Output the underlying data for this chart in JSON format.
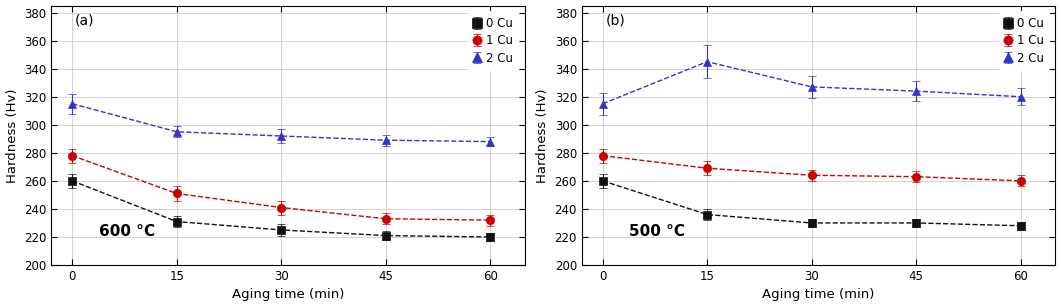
{
  "x": [
    0,
    15,
    30,
    45,
    60
  ],
  "panel_a": {
    "label": "(a)",
    "temp_label": "600 °C",
    "series": {
      "0Cu": {
        "y": [
          260,
          231,
          225,
          221,
          220
        ],
        "yerr": [
          5,
          4,
          4,
          3,
          3
        ],
        "color": "#111111",
        "marker": "s",
        "label": "0 Cu"
      },
      "1Cu": {
        "y": [
          278,
          251,
          241,
          233,
          232
        ],
        "yerr": [
          5,
          5,
          5,
          4,
          4
        ],
        "color": "#cc0000",
        "marker": "o",
        "label": "1 Cu"
      },
      "2Cu": {
        "y": [
          315,
          295,
          292,
          289,
          288
        ],
        "yerr": [
          7,
          4,
          5,
          4,
          3
        ],
        "color": "#3333cc",
        "marker": "^",
        "label": "2 Cu"
      }
    }
  },
  "panel_b": {
    "label": "(b)",
    "temp_label": "500 °C",
    "series": {
      "0Cu": {
        "y": [
          260,
          236,
          230,
          230,
          228
        ],
        "yerr": [
          5,
          4,
          3,
          3,
          3
        ],
        "color": "#111111",
        "marker": "s",
        "label": "0 Cu"
      },
      "1Cu": {
        "y": [
          278,
          269,
          264,
          263,
          260
        ],
        "yerr": [
          5,
          5,
          4,
          4,
          4
        ],
        "color": "#cc0000",
        "marker": "o",
        "label": "1 Cu"
      },
      "2Cu": {
        "y": [
          315,
          345,
          327,
          324,
          320
        ],
        "yerr": [
          8,
          12,
          8,
          7,
          6
        ],
        "color": "#3333cc",
        "marker": "^",
        "label": "2 Cu"
      }
    }
  },
  "ylim": [
    200,
    385
  ],
  "yticks": [
    200,
    220,
    240,
    260,
    280,
    300,
    320,
    340,
    360,
    380
  ],
  "xticks": [
    0,
    15,
    30,
    45,
    60
  ],
  "xlabel": "Aging time (min)",
  "ylabel": "Hardness (Hv)",
  "background_color": "#ffffff",
  "grid_color": "#cccccc",
  "series_order": [
    "2Cu",
    "1Cu",
    "0Cu"
  ],
  "legend_order": [
    "0Cu",
    "1Cu",
    "2Cu"
  ]
}
